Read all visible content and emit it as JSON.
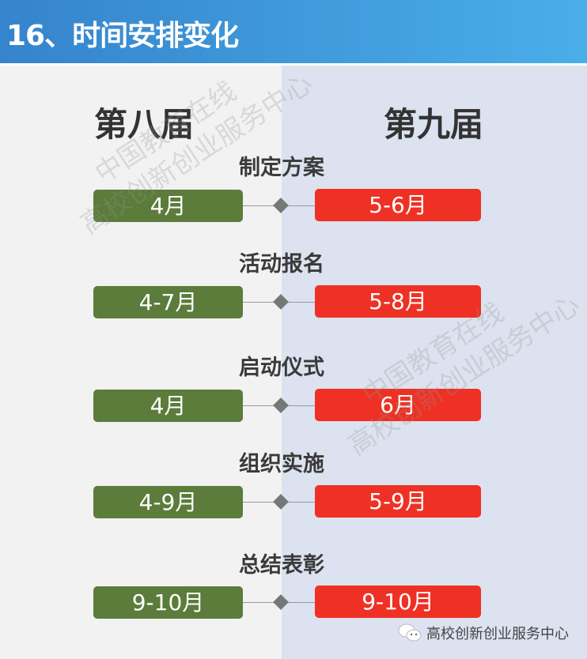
{
  "header": {
    "title": "16、时间安排变化"
  },
  "columns": {
    "left": "第八届",
    "right": "第九届"
  },
  "rows": [
    {
      "label": "制定方案",
      "left": "4月",
      "right": "5-6月"
    },
    {
      "label": "活动报名",
      "left": "4-7月",
      "right": "5-8月"
    },
    {
      "label": "启动仪式",
      "left": "4月",
      "right": "6月"
    },
    {
      "label": "组织实施",
      "left": "4-9月",
      "right": "5-9月"
    },
    {
      "label": "总结表彰",
      "left": "9-10月",
      "right": "9-10月"
    }
  ],
  "watermark": {
    "line1": "中国教育在线",
    "line2": "高校创新创业服务中心"
  },
  "footer": {
    "icon": "wechat-icon",
    "text": "高校创新创业服务中心"
  },
  "colors": {
    "header": "#3584cc",
    "left_bar": "#5b7c3a",
    "right_bar": "#ee3124"
  }
}
